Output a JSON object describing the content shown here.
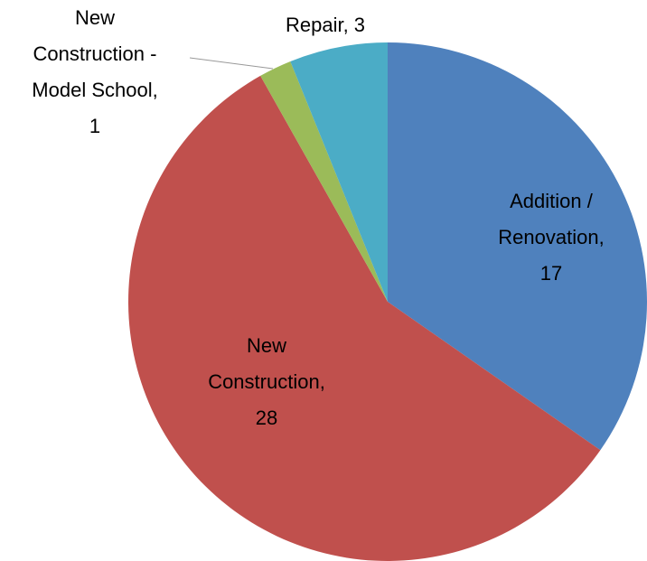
{
  "chart_data": {
    "type": "pie",
    "categories": [
      "Addition / Renovation",
      "New Construction",
      "New Construction - Model School",
      "Repair"
    ],
    "values": [
      17,
      28,
      1,
      3
    ],
    "value_labels": [
      "Addition / Renovation, 17",
      "New Construction, 28",
      "New Construction - Model School, 1",
      "Repair, 3"
    ],
    "colors": [
      "#4f81bd",
      "#c0504d",
      "#9bbb59",
      "#4bacc6"
    ]
  }
}
